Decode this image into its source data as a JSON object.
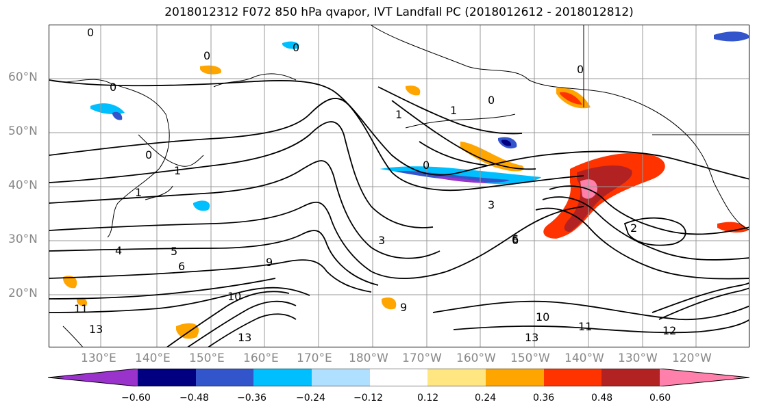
{
  "title": "2018012312 F072 850 hPa qvapor, IVT Landfall PC (2018012612 - 2018012812)",
  "lat_labels": [
    "60°N",
    "50°N",
    "40°N",
    "30°N",
    "20°N"
  ],
  "lon_labels": [
    "130°E",
    "140°E",
    "150°E",
    "160°E",
    "170°E",
    "180°W",
    "170°W",
    "160°W",
    "150°W",
    "140°W",
    "130°W",
    "120°W"
  ],
  "contour_labels": [
    "0",
    "0",
    "0",
    "0",
    "0",
    "0",
    "0",
    "0",
    "1",
    "1",
    "1",
    "1",
    "3",
    "3",
    "4",
    "5",
    "6",
    "6",
    "9",
    "9",
    "10",
    "10",
    "11",
    "11",
    "13",
    "13",
    "13",
    "12",
    "6",
    "2"
  ],
  "colorbar": {
    "colors": [
      "#9933cc",
      "#000080",
      "#3355cc",
      "#00bfff",
      "#b0e0ff",
      "#ffffff",
      "#ffe680",
      "#ffa500",
      "#ff3300",
      "#b22222",
      "#ff80aa"
    ],
    "tick_labels": [
      "−0.60",
      "−0.48",
      "−0.36",
      "−0.24",
      "−0.12",
      "0.12",
      "0.24",
      "0.36",
      "0.48",
      "0.60"
    ]
  },
  "colors": {
    "positive_strong": "#b22222",
    "positive_mid": "#ff3300",
    "positive_low": "#ffa500",
    "negative_strong": "#9933cc",
    "negative_mid": "#00bfff",
    "grid": "#999999"
  }
}
